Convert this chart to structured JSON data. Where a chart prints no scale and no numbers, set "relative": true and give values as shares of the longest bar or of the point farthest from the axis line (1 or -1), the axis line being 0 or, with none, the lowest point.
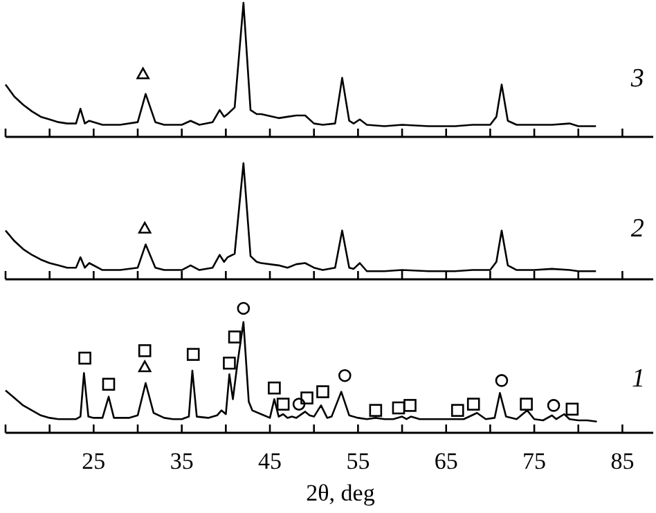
{
  "chart_data": [
    {
      "type": "line",
      "relative": true,
      "xlim": [
        15,
        88.5
      ],
      "tick_labels": false,
      "xticks": [
        {
          "value": 15,
          "label": null
        },
        {
          "value": 20,
          "label": null
        },
        {
          "value": 25,
          "label": null
        },
        {
          "value": 30,
          "label": null
        },
        {
          "value": 35,
          "label": null
        },
        {
          "value": 40,
          "label": null
        },
        {
          "value": 45,
          "label": null
        },
        {
          "value": 50,
          "label": null
        },
        {
          "value": 55,
          "label": null
        },
        {
          "value": 60,
          "label": null
        },
        {
          "value": 65,
          "label": null
        },
        {
          "value": 70,
          "label": null
        },
        {
          "value": 75,
          "label": null
        },
        {
          "value": 80,
          "label": null
        },
        {
          "value": 85,
          "label": null
        }
      ],
      "series": [
        {
          "name": "3",
          "color": "#000000",
          "x": [
            15,
            16,
            17,
            18,
            19,
            20,
            21,
            22,
            23,
            23.5,
            24,
            24.5,
            26,
            28,
            30,
            30.9,
            32,
            33,
            35,
            36,
            37,
            38.5,
            39.3,
            39.8,
            40.2,
            41,
            42,
            42.8,
            43.5,
            44,
            46,
            47,
            48,
            49,
            50,
            51,
            52.4,
            53.2,
            54,
            54.5,
            55.2,
            56,
            58,
            60,
            63,
            66,
            68,
            70,
            70.7,
            71.3,
            72,
            73,
            75,
            77,
            79,
            80,
            82
          ],
          "values": [
            0.39,
            0.3,
            0.24,
            0.19,
            0.15,
            0.13,
            0.11,
            0.1,
            0.1,
            0.21,
            0.1,
            0.12,
            0.09,
            0.09,
            0.11,
            0.32,
            0.11,
            0.09,
            0.09,
            0.12,
            0.09,
            0.11,
            0.2,
            0.15,
            0.17,
            0.22,
            1,
            0.2,
            0.17,
            0.17,
            0.14,
            0.15,
            0.16,
            0.16,
            0.1,
            0.09,
            0.1,
            0.44,
            0.12,
            0.1,
            0.13,
            0.09,
            0.08,
            0.09,
            0.08,
            0.08,
            0.09,
            0.09,
            0.15,
            0.39,
            0.12,
            0.09,
            0.09,
            0.09,
            0.1,
            0.08,
            0.08
          ]
        },
        {
          "type": "scatter",
          "marker": "triangle",
          "color": "#000000",
          "x": [
            30.6
          ],
          "values": [
            0.47
          ]
        }
      ]
    },
    {
      "type": "line",
      "relative": true,
      "xlim": [
        15,
        88.5
      ],
      "tick_labels": false,
      "xticks": [
        {
          "value": 15,
          "label": null
        },
        {
          "value": 20,
          "label": null
        },
        {
          "value": 25,
          "label": null
        },
        {
          "value": 30,
          "label": null
        },
        {
          "value": 35,
          "label": null
        },
        {
          "value": 40,
          "label": null
        },
        {
          "value": 45,
          "label": null
        },
        {
          "value": 50,
          "label": null
        },
        {
          "value": 55,
          "label": null
        },
        {
          "value": 60,
          "label": null
        },
        {
          "value": 65,
          "label": null
        },
        {
          "value": 70,
          "label": null
        },
        {
          "value": 75,
          "label": null
        },
        {
          "value": 80,
          "label": null
        },
        {
          "value": 85,
          "label": null
        }
      ],
      "series": [
        {
          "name": "2",
          "color": "#000000",
          "x": [
            15,
            16,
            17,
            18,
            19,
            20,
            21,
            22,
            23,
            23.5,
            24,
            24.5,
            26,
            28,
            30,
            30.9,
            32,
            33,
            35,
            36,
            37,
            38.5,
            39.3,
            39.8,
            40.2,
            41,
            42,
            42.8,
            43.5,
            44,
            46,
            47,
            48,
            49,
            50,
            51,
            52.4,
            53.2,
            54,
            54.5,
            55.2,
            56,
            58,
            60,
            63,
            66,
            68,
            70,
            70.7,
            71.3,
            72,
            73,
            75,
            77,
            79,
            80,
            82
          ],
          "values": [
            0.42,
            0.33,
            0.26,
            0.21,
            0.17,
            0.14,
            0.12,
            0.1,
            0.1,
            0.19,
            0.1,
            0.14,
            0.08,
            0.08,
            0.1,
            0.3,
            0.1,
            0.08,
            0.08,
            0.12,
            0.08,
            0.1,
            0.21,
            0.15,
            0.19,
            0.22,
            1,
            0.2,
            0.15,
            0.14,
            0.12,
            0.1,
            0.13,
            0.14,
            0.1,
            0.08,
            0.1,
            0.42,
            0.1,
            0.09,
            0.14,
            0.07,
            0.07,
            0.08,
            0.07,
            0.07,
            0.08,
            0.08,
            0.15,
            0.42,
            0.12,
            0.08,
            0.08,
            0.09,
            0.08,
            0.07,
            0.07
          ]
        },
        {
          "type": "scatter",
          "marker": "triangle",
          "color": "#000000",
          "x": [
            30.8
          ],
          "values": [
            0.44
          ]
        }
      ]
    },
    {
      "type": "line",
      "relative": true,
      "xlim": [
        15,
        88.5
      ],
      "tick_labels": "x",
      "xlabel": "2θ, deg",
      "xticks": [
        {
          "value": 15,
          "label": null
        },
        {
          "value": 20,
          "label": null
        },
        25,
        {
          "value": 30,
          "label": null
        },
        35,
        {
          "value": 40,
          "label": null
        },
        45,
        {
          "value": 50,
          "label": null
        },
        55,
        {
          "value": 60,
          "label": null
        },
        65,
        {
          "value": 70,
          "label": null
        },
        75,
        {
          "value": 80,
          "label": null
        },
        85
      ],
      "series": [
        {
          "name": "1",
          "color": "#000000",
          "x": [
            15,
            16,
            17,
            18,
            19,
            20,
            21,
            22,
            23,
            23.5,
            23.9,
            24.4,
            25,
            26,
            26.7,
            27.3,
            28,
            29,
            30,
            30.9,
            31.8,
            33,
            34,
            35,
            35.8,
            36.2,
            36.7,
            38,
            39,
            39.5,
            40,
            40.4,
            40.8,
            41.3,
            42,
            42.6,
            43,
            44,
            45,
            45.5,
            46,
            46.5,
            47,
            47.5,
            48,
            49,
            49.5,
            50,
            50.8,
            51.5,
            52,
            53.1,
            54,
            55,
            56,
            57,
            58,
            59,
            60,
            60.5,
            61,
            62,
            63,
            65,
            67,
            68.5,
            69.5,
            70.5,
            71.1,
            71.8,
            73,
            74.2,
            75,
            76,
            77,
            77.5,
            78.4,
            79,
            80,
            81,
            82.1
          ],
          "values": [
            0.34,
            0.28,
            0.22,
            0.18,
            0.14,
            0.12,
            0.11,
            0.11,
            0.11,
            0.13,
            0.48,
            0.13,
            0.12,
            0.12,
            0.29,
            0.12,
            0.12,
            0.12,
            0.14,
            0.4,
            0.16,
            0.12,
            0.11,
            0.11,
            0.13,
            0.5,
            0.13,
            0.12,
            0.14,
            0.18,
            0.15,
            0.47,
            0.27,
            0.55,
            0.89,
            0.25,
            0.18,
            0.15,
            0.12,
            0.27,
            0.13,
            0.15,
            0.12,
            0.13,
            0.12,
            0.17,
            0.14,
            0.13,
            0.22,
            0.12,
            0.13,
            0.33,
            0.14,
            0.12,
            0.11,
            0.12,
            0.11,
            0.11,
            0.13,
            0.11,
            0.13,
            0.11,
            0.11,
            0.11,
            0.11,
            0.16,
            0.11,
            0.12,
            0.32,
            0.13,
            0.11,
            0.18,
            0.11,
            0.1,
            0.14,
            0.11,
            0.15,
            0.11,
            0.1,
            0.1,
            0.09
          ]
        },
        {
          "type": "scatter",
          "marker": "square",
          "color": "#000000",
          "x": [
            24.0,
            26.7,
            30.8,
            36.3,
            40.4,
            41.0,
            45.5,
            46.5,
            49.2,
            51.0,
            57.0,
            59.6,
            60.9,
            66.3,
            68.1,
            74.1,
            79.3
          ],
          "values": [
            0.6,
            0.39,
            0.66,
            0.63,
            0.56,
            0.77,
            0.36,
            0.23,
            0.28,
            0.33,
            0.18,
            0.2,
            0.22,
            0.18,
            0.23,
            0.23,
            0.19
          ]
        },
        {
          "type": "scatter",
          "marker": "triangle",
          "color": "#000000",
          "x": [
            30.8
          ],
          "values": [
            0.53
          ]
        },
        {
          "type": "scatter",
          "marker": "circle",
          "color": "#000000",
          "x": [
            42.0,
            48.3,
            53.5,
            71.3,
            77.2
          ],
          "values": [
            1,
            0.23,
            0.46,
            0.42,
            0.22
          ]
        }
      ]
    }
  ]
}
